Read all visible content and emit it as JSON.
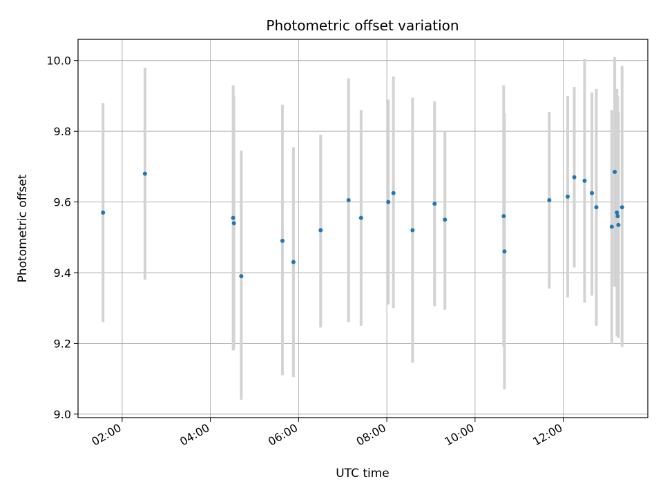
{
  "chart_data": {
    "type": "scatter",
    "title": "Photometric offset variation",
    "xlabel": "UTC time",
    "ylabel": "Photometric offset",
    "xlim": [
      "01:00",
      "13:55"
    ],
    "ylim": [
      8.99,
      10.06
    ],
    "x_ticks": [
      "02:00",
      "04:00",
      "06:00",
      "08:00",
      "10:00",
      "12:00"
    ],
    "y_ticks": [
      9.0,
      9.2,
      9.4,
      9.6,
      9.8,
      10.0
    ],
    "y_tick_labels": [
      "9.0",
      "9.2",
      "9.4",
      "9.6",
      "9.8",
      "10.0"
    ],
    "grid": true,
    "colors": {
      "point": "#1f77b4",
      "errorbar": "#d3d3d3",
      "grid": "#b0b0b0"
    },
    "series": [
      {
        "points": [
          {
            "x": "01:34",
            "y": 9.57,
            "low": 9.26,
            "high": 9.88
          },
          {
            "x": "02:31",
            "y": 9.68,
            "low": 9.38,
            "high": 9.98
          },
          {
            "x": "04:31",
            "y": 9.555,
            "low": 9.18,
            "high": 9.93
          },
          {
            "x": "04:32",
            "y": 9.54,
            "low": 9.185,
            "high": 9.9
          },
          {
            "x": "04:42",
            "y": 9.39,
            "low": 9.04,
            "high": 9.745
          },
          {
            "x": "05:38",
            "y": 9.49,
            "low": 9.11,
            "high": 9.875
          },
          {
            "x": "05:53",
            "y": 9.43,
            "low": 9.105,
            "high": 9.755
          },
          {
            "x": "06:30",
            "y": 9.52,
            "low": 9.245,
            "high": 9.79
          },
          {
            "x": "07:08",
            "y": 9.605,
            "low": 9.26,
            "high": 9.95
          },
          {
            "x": "07:25",
            "y": 9.555,
            "low": 9.25,
            "high": 9.86
          },
          {
            "x": "08:02",
            "y": 9.6,
            "low": 9.31,
            "high": 9.89
          },
          {
            "x": "08:09",
            "y": 9.625,
            "low": 9.3,
            "high": 9.955
          },
          {
            "x": "08:35",
            "y": 9.52,
            "low": 9.145,
            "high": 9.895
          },
          {
            "x": "09:05",
            "y": 9.595,
            "low": 9.305,
            "high": 9.885
          },
          {
            "x": "09:19",
            "y": 9.55,
            "low": 9.295,
            "high": 9.8
          },
          {
            "x": "10:39",
            "y": 9.56,
            "low": 9.19,
            "high": 9.93
          },
          {
            "x": "10:40",
            "y": 9.46,
            "low": 9.07,
            "high": 9.85
          },
          {
            "x": "11:41",
            "y": 9.605,
            "low": 9.355,
            "high": 9.855
          },
          {
            "x": "12:06",
            "y": 9.615,
            "low": 9.33,
            "high": 9.9
          },
          {
            "x": "12:15",
            "y": 9.67,
            "low": 9.415,
            "high": 9.925
          },
          {
            "x": "12:29",
            "y": 9.66,
            "low": 9.315,
            "high": 10.005
          },
          {
            "x": "12:39",
            "y": 9.625,
            "low": 9.335,
            "high": 9.91
          },
          {
            "x": "12:45",
            "y": 9.585,
            "low": 9.25,
            "high": 9.92
          },
          {
            "x": "13:06",
            "y": 9.53,
            "low": 9.2,
            "high": 9.86
          },
          {
            "x": "13:10",
            "y": 9.685,
            "low": 9.36,
            "high": 10.01
          },
          {
            "x": "13:13",
            "y": 9.57,
            "low": 9.22,
            "high": 9.92
          },
          {
            "x": "13:14",
            "y": 9.56,
            "low": 9.22,
            "high": 9.9
          },
          {
            "x": "13:15",
            "y": 9.535,
            "low": 9.215,
            "high": 9.855
          },
          {
            "x": "13:20",
            "y": 9.585,
            "low": 9.19,
            "high": 9.985
          }
        ]
      }
    ]
  }
}
